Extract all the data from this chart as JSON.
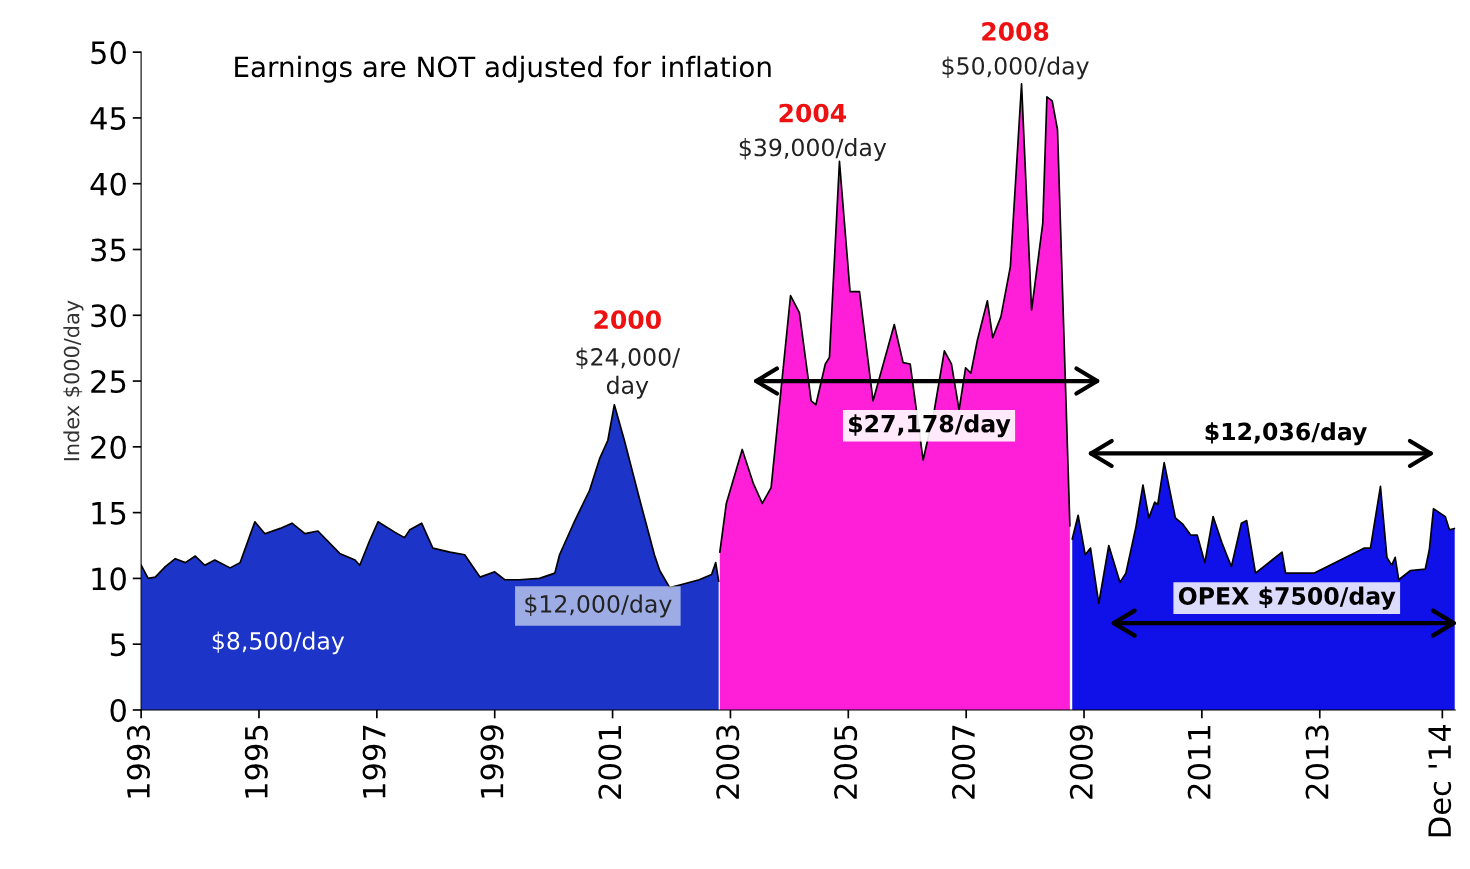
{
  "chart_data": {
    "type": "area",
    "ylabel": "Index $000/day",
    "xlim": [
      1993,
      2015.3
    ],
    "ylim": [
      0,
      50
    ],
    "xticks": [
      1993,
      1995,
      1997,
      1999,
      2001,
      2003,
      2005,
      2007,
      2009,
      2011,
      2013,
      {
        "value": 2015.08,
        "label": "Dec '14"
      }
    ],
    "yticks": [
      0,
      5,
      10,
      15,
      20,
      25,
      30,
      35,
      40,
      45,
      50
    ],
    "grid": false,
    "series": [
      {
        "color": "#1c34c8",
        "x": [
          1993.0,
          1993.12,
          1993.24,
          1993.41,
          1993.58,
          1993.75,
          1993.92,
          1994.08,
          1994.25,
          1994.51,
          1994.68,
          1994.93,
          1995.1,
          1995.36,
          1995.56,
          1995.78,
          1996.0,
          1996.37,
          1996.63,
          1996.71,
          1996.88,
          1997.02,
          1997.31,
          1997.47,
          1997.56,
          1997.76,
          1997.95,
          1998.24,
          1998.49,
          1998.75,
          1999.0,
          1999.17,
          1999.42,
          1999.76,
          2000.02,
          2000.1,
          2000.36,
          2000.61,
          2000.78,
          2000.92,
          2001.03,
          2001.2,
          2001.46,
          2001.71,
          2001.8,
          2001.97,
          2002.14,
          2002.47,
          2002.68,
          2002.75,
          2002.8
        ],
        "values": [
          11.0,
          10.0,
          10.1,
          10.9,
          11.5,
          11.2,
          11.7,
          11.0,
          11.4,
          10.8,
          11.2,
          14.3,
          13.4,
          13.8,
          14.2,
          13.4,
          13.6,
          11.9,
          11.4,
          11.0,
          12.9,
          14.3,
          13.5,
          13.1,
          13.7,
          14.2,
          12.3,
          12.0,
          11.8,
          10.1,
          10.5,
          9.9,
          9.9,
          10.0,
          10.4,
          11.8,
          14.4,
          16.7,
          19.1,
          20.5,
          23.2,
          20.5,
          16.0,
          11.8,
          10.6,
          9.3,
          9.5,
          9.9,
          10.3,
          11.2,
          9.8
        ]
      },
      {
        "color": "#ff1fd8",
        "x": [
          2002.82,
          2002.93,
          2003.2,
          2003.39,
          2003.54,
          2003.69,
          2004.02,
          2004.17,
          2004.37,
          2004.45,
          2004.61,
          2004.68,
          2004.85,
          2005.03,
          2005.19,
          2005.42,
          2005.57,
          2005.78,
          2005.93,
          2006.05,
          2006.15,
          2006.27,
          2006.46,
          2006.63,
          2006.75,
          2006.88,
          2006.99,
          2007.08,
          2007.19,
          2007.36,
          2007.45,
          2007.59,
          2007.75,
          2007.94,
          2008.11,
          2008.3,
          2008.37,
          2008.46,
          2008.55,
          2008.76
        ],
        "values": [
          12.0,
          15.7,
          19.8,
          17.2,
          15.7,
          16.9,
          31.5,
          30.2,
          23.5,
          23.2,
          26.3,
          26.8,
          41.7,
          31.8,
          31.8,
          23.5,
          null,
          29.3,
          26.4,
          26.3,
          null,
          19.0,
          22.8,
          27.3,
          26.3,
          22.8,
          26.0,
          25.6,
          28.1,
          31.1,
          28.3,
          29.9,
          33.7,
          47.6,
          30.4,
          37.0,
          46.6,
          46.3,
          44.1,
          14.0
        ]
      },
      {
        "color": "#1010e8",
        "x": [
          2008.8,
          2008.9,
          2009.02,
          2009.11,
          2009.25,
          2009.42,
          2009.61,
          2009.71,
          2009.88,
          2010.0,
          2010.1,
          2010.2,
          2010.25,
          2010.36,
          2010.55,
          2010.68,
          2010.81,
          2010.92,
          2011.05,
          2011.19,
          2011.34,
          2011.5,
          2011.67,
          2011.76,
          2011.91,
          2012.0,
          2012.22,
          2012.36,
          2012.42,
          2012.64,
          2012.9,
          2013.15,
          2013.49,
          2013.75,
          2013.86,
          2014.03,
          2014.14,
          2014.22,
          2014.28,
          2014.34,
          2014.54,
          2014.79,
          2014.86,
          2014.93,
          2015.13,
          2015.2,
          2015.29
        ],
        "values": [
          13.0,
          14.8,
          11.8,
          12.3,
          8.1,
          12.5,
          9.7,
          10.4,
          13.9,
          17.1,
          14.6,
          15.8,
          15.6,
          18.8,
          14.6,
          14.1,
          13.3,
          13.3,
          11.2,
          14.7,
          12.7,
          10.9,
          14.2,
          14.4,
          10.4,
          null,
          null,
          12.0,
          10.4,
          null,
          10.4,
          null,
          null,
          12.3,
          12.3,
          17.0,
          11.6,
          11.0,
          11.6,
          9.9,
          10.6,
          10.7,
          12.2,
          15.3,
          14.7,
          13.7,
          13.8
        ]
      }
    ],
    "annotations": [
      "Earnings are NOT adjusted for inflation",
      "2000",
      "$24,000/\nday",
      "2004",
      "$39,000/day",
      "2008",
      "$50,000/day",
      "$8,500/day",
      "$12,000/day",
      "$27,178/day",
      "$12,036/day",
      "OPEX $7500/day"
    ]
  }
}
